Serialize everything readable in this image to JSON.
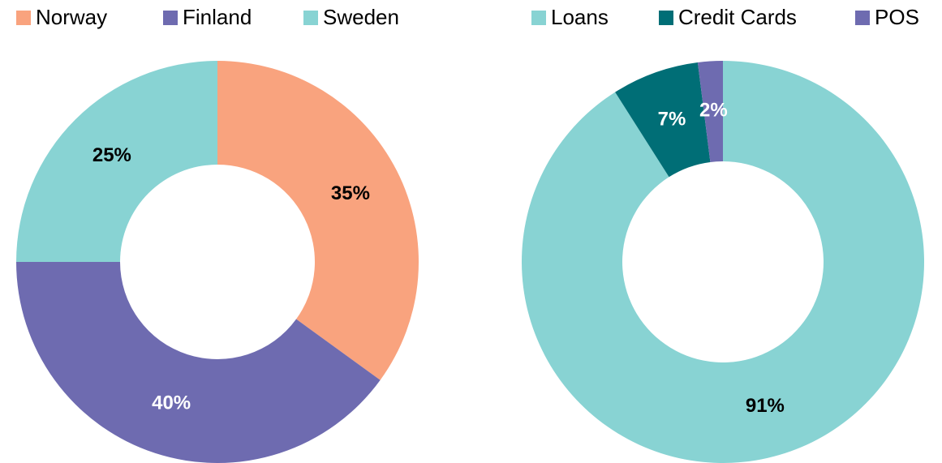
{
  "chart_data": [
    {
      "type": "donut",
      "categories": [
        "Norway",
        "Finland",
        "Sweden"
      ],
      "values": [
        35,
        40,
        25
      ],
      "value_labels": [
        "35%",
        "40%",
        "25%"
      ],
      "colors": [
        "#f9a37e",
        "#6e6bb0",
        "#88d3d3"
      ],
      "label_colors": [
        "#000000",
        "#ffffff",
        "#000000"
      ]
    },
    {
      "type": "donut",
      "categories": [
        "Loans",
        "Credit Cards",
        "POS"
      ],
      "values": [
        91,
        7,
        2
      ],
      "value_labels": [
        "91%",
        "7%",
        "2%"
      ],
      "colors": [
        "#88d3d3",
        "#006e76",
        "#6e6bb0"
      ],
      "label_colors": [
        "#000000",
        "#ffffff",
        "#ffffff"
      ]
    }
  ]
}
